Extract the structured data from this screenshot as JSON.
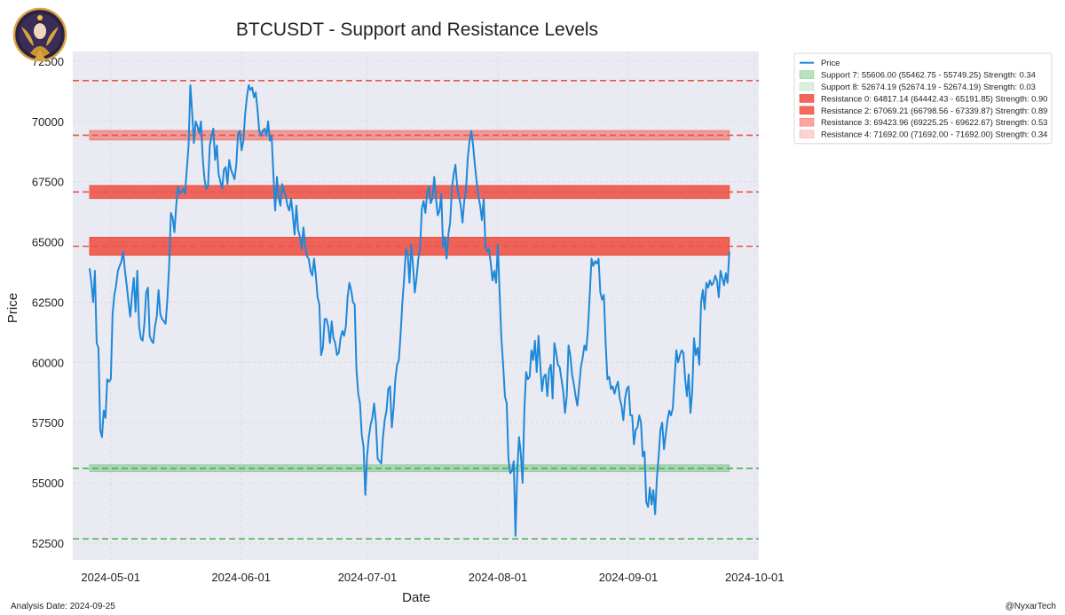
{
  "chart_data": {
    "type": "line",
    "title": "BTCUSDT - Support and Resistance Levels",
    "xlabel": "Date",
    "ylabel": "Price",
    "ylim": [
      51800,
      72900
    ],
    "xlim": [
      "2024-04-22",
      "2024-10-02"
    ],
    "y_ticks": [
      {
        "value": 52500,
        "label": "52500"
      },
      {
        "value": 55000,
        "label": "55000"
      },
      {
        "value": 57500,
        "label": "57500"
      },
      {
        "value": 60000,
        "label": "60000"
      },
      {
        "value": 62500,
        "label": "62500"
      },
      {
        "value": 65000,
        "label": "65000"
      },
      {
        "value": 67500,
        "label": "67500"
      },
      {
        "value": 70000,
        "label": "70000"
      },
      {
        "value": 72500,
        "label": "72500"
      }
    ],
    "x_ticks": [
      {
        "date": "2024-05-01",
        "label": "2024-05-01"
      },
      {
        "date": "2024-06-01",
        "label": "2024-06-01"
      },
      {
        "date": "2024-07-01",
        "label": "2024-07-01"
      },
      {
        "date": "2024-08-01",
        "label": "2024-08-01"
      },
      {
        "date": "2024-09-01",
        "label": "2024-09-01"
      },
      {
        "date": "2024-10-01",
        "label": "2024-10-01"
      }
    ],
    "grid": true,
    "legend_position": "outside-top-right",
    "series": [
      {
        "name": "Price",
        "color": "#1f88d8",
        "start_date": "2024-04-26",
        "end_date": "2024-09-25",
        "values": [
          63900,
          63300,
          62500,
          63800,
          60800,
          60600,
          57200,
          56900,
          58000,
          57700,
          59300,
          59200,
          59300,
          62000,
          62800,
          63200,
          63800,
          64000,
          64200,
          64600,
          63800,
          63200,
          62500,
          61900,
          62800,
          63500,
          62100,
          63800,
          61500,
          61000,
          60900,
          61600,
          62900,
          63100,
          61100,
          60900,
          60800,
          61500,
          61900,
          63000,
          62000,
          61800,
          61700,
          61600,
          62600,
          64000,
          66200,
          66000,
          65400,
          66500,
          67300,
          67000,
          67100,
          67200,
          67000,
          68000,
          69000,
          71500,
          70400,
          69100,
          70000,
          69800,
          69500,
          70000,
          68500,
          67600,
          67200,
          67300,
          69000,
          69400,
          69700,
          68400,
          69000,
          67800,
          67500,
          67200,
          68000,
          68100,
          67400,
          68400,
          68000,
          67800,
          67600,
          68200,
          69500,
          69600,
          68800,
          69200,
          70300,
          71000,
          71500,
          71300,
          71400,
          71000,
          71200,
          70500,
          69600,
          69400,
          69600,
          69700,
          69400,
          70000,
          69200,
          69400,
          67800,
          66300,
          67700,
          66800,
          66500,
          67400,
          67100,
          66900,
          66500,
          66300,
          66800,
          66100,
          65300,
          66500,
          65500,
          65200,
          64700,
          65600,
          64800,
          64400,
          64300,
          63800,
          63600,
          64300,
          63600,
          62700,
          62400,
          60300,
          60600,
          61800,
          61800,
          61500,
          60800,
          61700,
          61000,
          60800,
          60300,
          60400,
          61000,
          61300,
          61100,
          61500,
          62700,
          63300,
          63000,
          62500,
          62400,
          59700,
          58700,
          58300,
          57000,
          56500,
          54500,
          56100,
          56900,
          57400,
          57700,
          58300,
          57500,
          56000,
          55900,
          55800,
          56900,
          57600,
          58000,
          58900,
          59000,
          57300,
          58100,
          59300,
          59900,
          60100,
          61200,
          62500,
          63500,
          64700,
          64500,
          63300,
          64900,
          64000,
          62900,
          63500,
          64300,
          64700,
          66400,
          66700,
          66200,
          67000,
          67300,
          66600,
          66800,
          67700,
          66800,
          66100,
          66300,
          67000,
          64800,
          65200,
          64300,
          65300,
          65800,
          67200,
          67800,
          68200,
          67300,
          66900,
          66500,
          65800,
          66700,
          67200,
          68500,
          69200,
          69600,
          69000,
          68200,
          67500,
          66900,
          66500,
          65900,
          66800,
          64800,
          64600,
          64700,
          64100,
          63400,
          63800,
          63300,
          64900,
          62900,
          61000,
          59900,
          58600,
          58300,
          56000,
          55400,
          55500,
          55900,
          52800,
          55500,
          56900,
          56200,
          55000,
          58000,
          59600,
          59300,
          59400,
          60500,
          60100,
          60900,
          59600,
          61100,
          59900,
          58800,
          59400,
          59500,
          58600,
          59700,
          59900,
          58500,
          60800,
          60400,
          59900,
          59800,
          59300,
          58800,
          57900,
          58600,
          60700,
          60300,
          59500,
          59100,
          58600,
          58200,
          59000,
          59800,
          60200,
          60700,
          60500,
          61400,
          62800,
          64300,
          64000,
          64200,
          64100,
          64300,
          62900,
          62600,
          62800,
          60800,
          59300,
          59400,
          58900,
          59000,
          58700,
          59000,
          59200,
          58500,
          58200,
          57600,
          58500,
          58900,
          59000,
          57800,
          57800,
          56600,
          57200,
          57300,
          57800,
          57500,
          56100,
          56300,
          54200,
          54000,
          54800,
          54100,
          54700,
          53700,
          55200,
          56100,
          57200,
          57500,
          56400,
          57000,
          57600,
          58000,
          57800,
          58100,
          59300,
          60500,
          60000,
          60300,
          60500,
          60400,
          59300,
          58600,
          59500,
          57900,
          58800,
          61000,
          60300,
          60600,
          59900,
          62500,
          63000,
          62200,
          63300,
          63100,
          63400,
          63200,
          63300,
          63600,
          63400,
          62700,
          63800,
          63500,
          63200,
          63700,
          63300,
          64600
        ]
      }
    ],
    "bands": [
      {
        "name": "Support 7",
        "type": "support",
        "level": 55606.0,
        "low": 55462.75,
        "high": 55749.25,
        "strength": 0.34,
        "label": "Support 7: 55606.00 (55462.75 - 55749.25) Strength: 0.34",
        "color": "#55b86a",
        "opacity": 0.42
      },
      {
        "name": "Support 8",
        "type": "support",
        "level": 52674.19,
        "low": 52674.19,
        "high": 52674.19,
        "strength": 0.03,
        "label": "Support 8: 52674.19 (52674.19 - 52674.19) Strength: 0.03",
        "color": "#55b86a",
        "opacity": 0.22
      },
      {
        "name": "Resistance 0",
        "type": "resistance",
        "level": 64817.14,
        "low": 64442.43,
        "high": 65191.85,
        "strength": 0.9,
        "label": "Resistance 0: 64817.14 (64442.43 - 65191.85) Strength: 0.90",
        "color": "#ef3b2c",
        "opacity": 0.78
      },
      {
        "name": "Resistance 2",
        "type": "resistance",
        "level": 67069.21,
        "low": 66798.56,
        "high": 67339.87,
        "strength": 0.89,
        "label": "Resistance 2: 67069.21 (66798.56 - 67339.87) Strength: 0.89",
        "color": "#ef3b2c",
        "opacity": 0.76
      },
      {
        "name": "Resistance 3",
        "type": "resistance",
        "level": 69423.96,
        "low": 69225.25,
        "high": 69622.67,
        "strength": 0.53,
        "label": "Resistance 3: 69423.96 (69225.25 - 69622.67) Strength: 0.53",
        "color": "#ef3b2c",
        "opacity": 0.45
      },
      {
        "name": "Resistance 4",
        "type": "resistance",
        "level": 71692.0,
        "low": 71692.0,
        "high": 71692.0,
        "strength": 0.34,
        "label": "Resistance 4: 71692.00 (71692.00 - 71692.00) Strength: 0.34",
        "color": "#ef3b2c",
        "opacity": 0.22
      }
    ],
    "level_lines": [
      {
        "type": "resistance",
        "value": 71692.0,
        "color": "#e8554a"
      },
      {
        "type": "resistance",
        "value": 69423.96,
        "color": "#e8554a"
      },
      {
        "type": "resistance",
        "value": 67069.21,
        "color": "#e8554a"
      },
      {
        "type": "resistance",
        "value": 64817.14,
        "color": "#e8554a"
      },
      {
        "type": "support",
        "value": 55606.0,
        "color": "#4caf50"
      },
      {
        "type": "support",
        "value": 52674.19,
        "color": "#4caf50"
      }
    ]
  },
  "footer": {
    "analysis_date": "Analysis Date: 2024-09-25",
    "handle": "@NyxarTech"
  },
  "colors": {
    "plot_background": "#eaeaf2",
    "grid": "#ffffff",
    "price_line": "#1f88d8"
  },
  "logo": {
    "icon": "nyxar-logo-icon"
  }
}
